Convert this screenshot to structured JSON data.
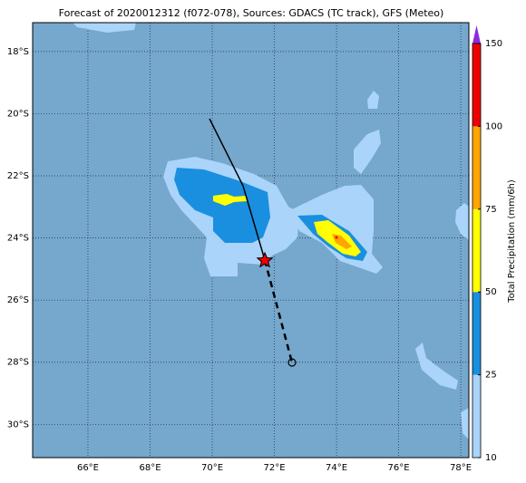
{
  "map": {
    "title": "Forecast of 2020012312 (f072-078), Sources: GDACS (TC track), GFS (Meteo)",
    "lonlim": [
      64.22,
      78.26
    ],
    "latlim": [
      -17.07,
      -31.07
    ],
    "lon_ticks": [
      {
        "value": 66,
        "label": "66°E"
      },
      {
        "value": 68,
        "label": "68°E"
      },
      {
        "value": 70,
        "label": "70°E"
      },
      {
        "value": 72,
        "label": "72°E"
      },
      {
        "value": 74,
        "label": "74°E"
      },
      {
        "value": 76,
        "label": "76°E"
      },
      {
        "value": 78,
        "label": "78°E"
      }
    ],
    "lat_ticks": [
      {
        "value": -18,
        "label": "18°S"
      },
      {
        "value": -20,
        "label": "20°S"
      },
      {
        "value": -22,
        "label": "22°S"
      },
      {
        "value": -24,
        "label": "24°S"
      },
      {
        "value": -26,
        "label": "26°S"
      },
      {
        "value": -28,
        "label": "28°S"
      },
      {
        "value": -30,
        "label": "30°S"
      }
    ],
    "colorbar": {
      "label": "Total Precipitation (mm/6h)",
      "ticks": [
        10,
        25,
        50,
        75,
        100,
        150
      ],
      "colors": [
        "#aad4fa",
        "#1a8fdf",
        "#ffff00",
        "#ffa500",
        "#ee0000"
      ],
      "extend_color": "#8a2be2"
    }
  }
}
